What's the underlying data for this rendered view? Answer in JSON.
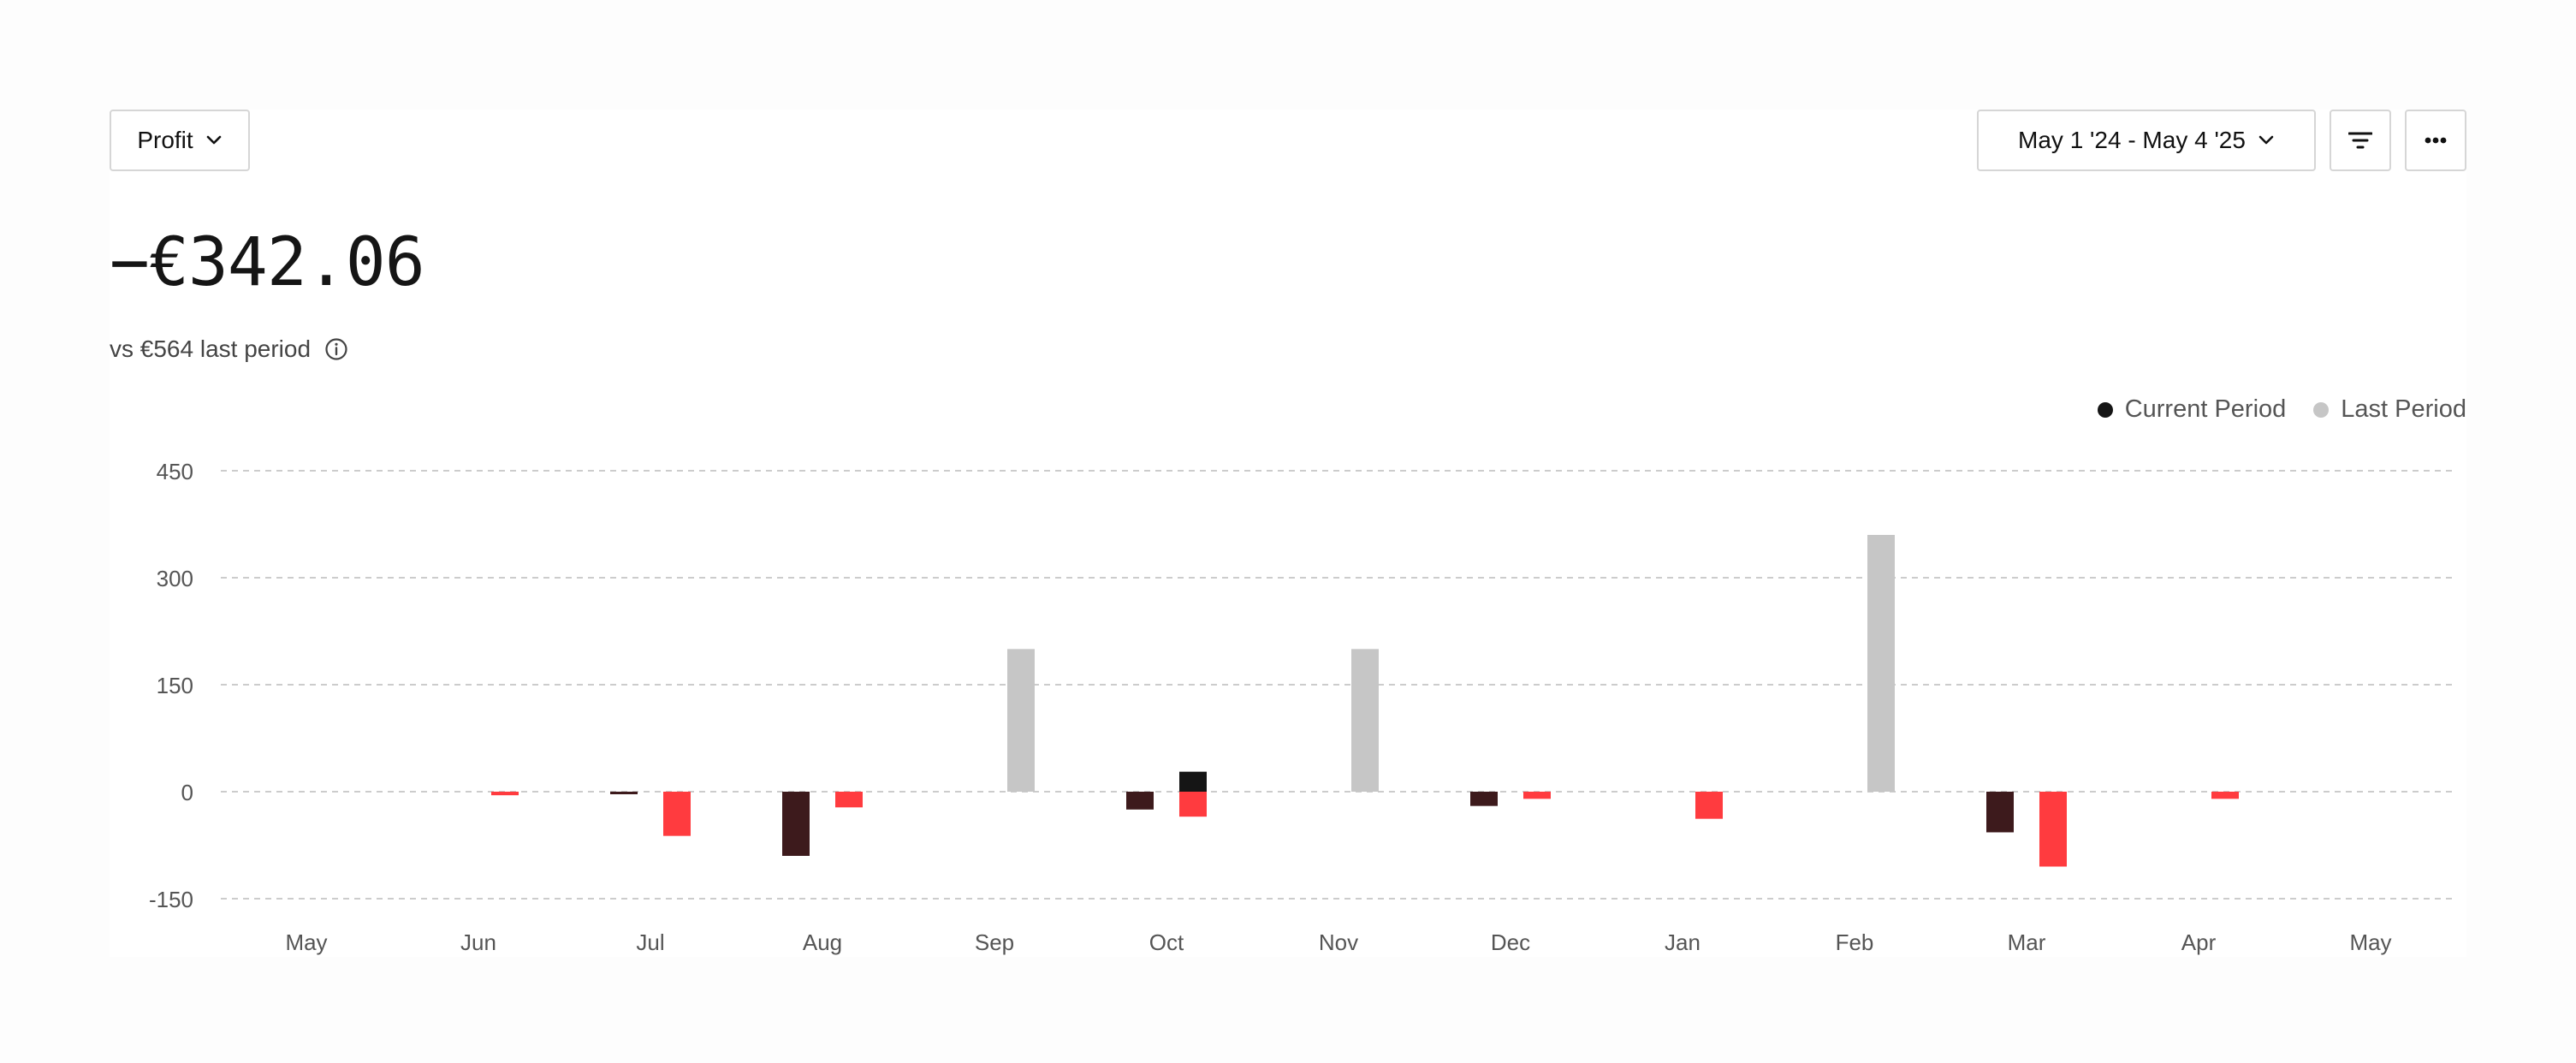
{
  "controls": {
    "metric_label": "Profit",
    "date_range_label": "May 1 '24 - May 4 '25",
    "filter_icon": "filter-lines-icon",
    "more_icon": "ellipsis-icon"
  },
  "summary": {
    "value": "−€342.06",
    "comparison": "vs €564 last period",
    "info_icon": "info-circle-icon"
  },
  "colors": {
    "current": "#151515",
    "current_negative": "#3d1a1c",
    "last": "#c6c6c6",
    "last_negative": "#ff3b3f",
    "grid": "#cccccc"
  },
  "chart_data": {
    "type": "bar",
    "categories": [
      "May",
      "Jun",
      "Jul",
      "Aug",
      "Sep",
      "Oct",
      "Nov",
      "Dec",
      "Jan",
      "Feb",
      "Mar",
      "Apr",
      "May"
    ],
    "series": [
      {
        "name": "Current Period",
        "values": [
          0,
          0,
          -3,
          -90,
          0,
          -25,
          0,
          -20,
          0,
          0,
          -57,
          0,
          0
        ]
      },
      {
        "name": "Last Period",
        "values": [
          0,
          -5,
          -62,
          -22,
          200,
          -35,
          200,
          -10,
          -38,
          360,
          -105,
          -10,
          0
        ]
      },
      {
        "name": "Current Period (positive)",
        "values": [
          0,
          0,
          0,
          0,
          0,
          28,
          0,
          0,
          0,
          0,
          0,
          0,
          0
        ]
      }
    ],
    "y_ticks": [
      "450",
      "300",
      "150",
      "0",
      "-150"
    ],
    "ylim": [
      -150,
      450
    ],
    "grid": true,
    "legend_position": "top-right"
  }
}
